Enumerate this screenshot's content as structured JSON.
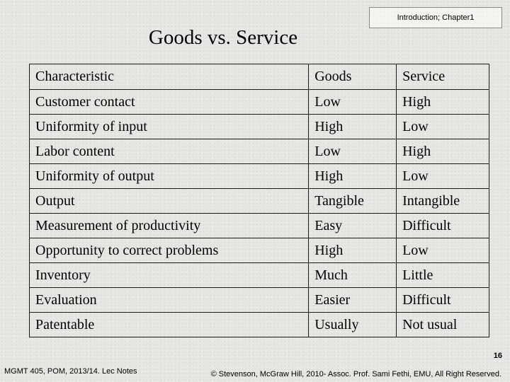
{
  "header": {
    "chapter_label": "Introduction; Chapter1"
  },
  "slide": {
    "title": "Goods vs. Service"
  },
  "table": {
    "headers": [
      "Characteristic",
      "Goods",
      "Service"
    ],
    "rows": [
      [
        "Customer contact",
        "Low",
        "High"
      ],
      [
        "Uniformity of input",
        "High",
        "Low"
      ],
      [
        "Labor content",
        "Low",
        "High"
      ],
      [
        "Uniformity of output",
        "High",
        "Low"
      ],
      [
        "Output",
        "Tangible",
        "Intangible"
      ],
      [
        "Measurement of productivity",
        "Easy",
        "Difficult"
      ],
      [
        "Opportunity to correct problems",
        "High",
        "Low"
      ],
      [
        "Inventory",
        "Much",
        "Little"
      ],
      [
        "Evaluation",
        "Easier",
        "Difficult"
      ],
      [
        "Patentable",
        "Usually",
        "Not usual"
      ]
    ]
  },
  "footer": {
    "page_number": "16",
    "course": "MGMT 405, POM, 2013/14. Lec Notes",
    "copyright": "© Stevenson, McGraw Hill, 2010- Assoc. Prof. Sami Fethi, EMU, All Right Reserved."
  }
}
